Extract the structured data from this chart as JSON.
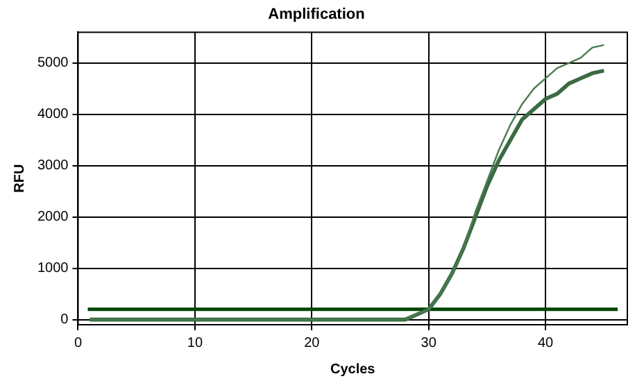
{
  "chart_data": {
    "type": "line",
    "title": "Amplification",
    "xlabel": "Cycles",
    "ylabel": "RFU",
    "x": [
      1,
      5,
      10,
      15,
      20,
      25,
      27,
      28,
      29,
      30,
      31,
      32,
      33,
      34,
      35,
      36,
      37,
      38,
      39,
      40,
      41,
      42,
      43,
      44,
      45
    ],
    "series": [
      {
        "color": "#4a7a52",
        "values": [
          0,
          0,
          0,
          0,
          0,
          0,
          0,
          0,
          100,
          200,
          500,
          900,
          1400,
          2100,
          2700,
          3300,
          3800,
          4200,
          4500,
          4700,
          4900,
          5000,
          5100,
          5300,
          5350
        ]
      },
      {
        "color": "#3a6b42",
        "values": [
          0,
          0,
          0,
          0,
          0,
          0,
          0,
          0,
          100,
          200,
          500,
          900,
          1400,
          2000,
          2600,
          3100,
          3500,
          3900,
          4100,
          4300,
          4400,
          4600,
          4700,
          4800,
          4850
        ]
      }
    ],
    "xlim": [
      0,
      47
    ],
    "xticks": [
      0,
      10,
      20,
      30,
      40
    ],
    "ylim": [
      -100,
      5600
    ],
    "yticks": [
      0,
      1000,
      2000,
      3000,
      4000,
      5000
    ],
    "ref_lines": [
      {
        "axis": "y",
        "value": 200,
        "color": "#004400"
      }
    ],
    "grid": true,
    "legend": false,
    "marker": "none",
    "line_style": "solid"
  }
}
